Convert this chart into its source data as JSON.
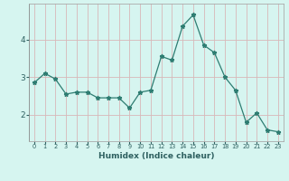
{
  "x": [
    0,
    1,
    2,
    3,
    4,
    5,
    6,
    7,
    8,
    9,
    10,
    11,
    12,
    13,
    14,
    15,
    16,
    17,
    18,
    19,
    20,
    21,
    22,
    23
  ],
  "y": [
    2.85,
    3.1,
    2.95,
    2.55,
    2.6,
    2.6,
    2.45,
    2.45,
    2.45,
    2.18,
    2.6,
    2.65,
    3.55,
    3.45,
    4.35,
    4.65,
    3.85,
    3.65,
    3.0,
    2.65,
    1.8,
    2.05,
    1.6,
    1.55
  ],
  "line_color": "#2e7d72",
  "marker": "*",
  "marker_size": 3.5,
  "xlabel": "Humidex (Indice chaleur)",
  "bg_color": "#d6f5f0",
  "grid_color_v": "#c8e8e4",
  "grid_color_h": "#c8b8b8",
  "yticks": [
    2,
    3,
    4
  ],
  "xtick_labels": [
    "0",
    "1",
    "2",
    "3",
    "4",
    "5",
    "6",
    "7",
    "8",
    "9",
    "10",
    "11",
    "12",
    "13",
    "14",
    "15",
    "16",
    "17",
    "18",
    "19",
    "20",
    "21",
    "22",
    "23"
  ],
  "ylim": [
    1.3,
    4.95
  ],
  "xlim": [
    -0.5,
    23.5
  ]
}
